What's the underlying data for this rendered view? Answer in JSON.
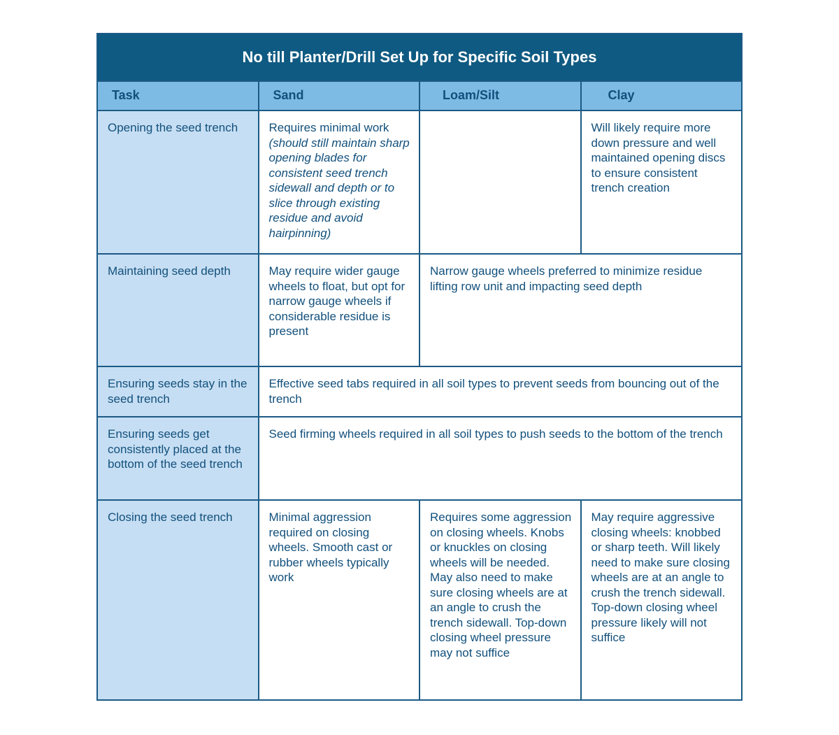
{
  "title": "No till Planter/Drill Set Up for Specific Soil Types",
  "columns": [
    "Task",
    "Sand",
    "Loam/Silt",
    "Clay"
  ],
  "rows": [
    {
      "task": "Opening the seed trench",
      "sand": "Requires minimal work",
      "sand_note": "(should still maintain sharp opening blades for consistent seed trench sidewall and depth or to slice through existing residue and avoid hairpinning)",
      "clay": "Will likely require more down pressure and well maintained opening discs to ensure consistent trench creation"
    },
    {
      "task": "Maintaining seed depth",
      "sand": "May require wider gauge wheels to float, but opt for narrow gauge wheels if considerable residue is present",
      "loam_silt_clay": "Narrow gauge wheels preferred to minimize residue lifting row unit and impacting seed depth"
    },
    {
      "task": "Ensuring seeds stay in the seed trench",
      "all": "Effective seed tabs required in all soil types to prevent seeds from bouncing out of the trench"
    },
    {
      "task": "Ensuring seeds get consistently placed at the bottom of the seed trench",
      "all": "Seed firming wheels required in all soil types to push seeds to the bottom of the trench"
    },
    {
      "task": "Closing the seed trench",
      "sand": "Minimal aggression required on closing wheels. Smooth cast or rubber wheels typically work",
      "loam_silt": "Requires some aggression on closing wheels. Knobs or knuckles on closing wheels will be needed. May also need to make sure closing wheels are at an angle to crush the trench sidewall. Top-down closing wheel pressure may not suffice",
      "clay": "May require aggressive closing wheels: knobbed or sharp teeth. Will likely need to make sure closing wheels are at an angle to crush the trench sidewall. Top-down closing wheel pressure likely will not suffice"
    }
  ]
}
